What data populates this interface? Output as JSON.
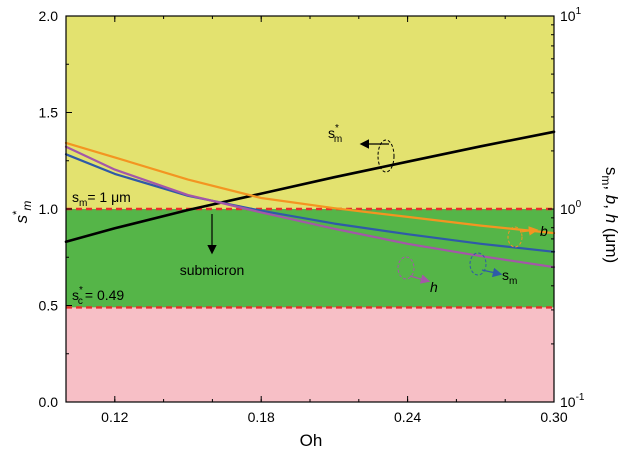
{
  "chart_data": {
    "type": "line",
    "xlabel": "Oh",
    "ylabel_left": "s*m",
    "ylabel_right": "sm, b, h (μm)",
    "xlim": [
      0.1,
      0.3
    ],
    "ylim_left": [
      0,
      2.0
    ],
    "ylim_right_log": [
      0.1,
      10
    ],
    "x_ticks": [
      0.12,
      0.18,
      0.24,
      0.3
    ],
    "x_tick_labels": [
      "0.12",
      "0.18",
      "0.24",
      "0.30"
    ],
    "y_left_ticks": [
      0.0,
      0.5,
      1.0,
      1.5,
      2.0
    ],
    "y_left_tick_labels": [
      "0.0",
      "0.5",
      "1.0",
      "1.5",
      "2.0"
    ],
    "y_right_ticks": [
      0.1,
      1,
      10
    ],
    "y_right_tick_labels": [
      "10",
      "10",
      "10"
    ],
    "y_right_tick_exponents": [
      "-1",
      "0",
      "1"
    ],
    "regions": [
      {
        "from": 1.0,
        "to": 2.0,
        "color": "#e3e26f"
      },
      {
        "from": 0.49,
        "to": 1.0,
        "color": "#55b548"
      },
      {
        "from": 0.0,
        "to": 0.49,
        "color": "#f7bfc6"
      }
    ],
    "reference_lines": [
      {
        "axis": "left",
        "value": 1.0,
        "color": "#e8302c"
      },
      {
        "axis": "left",
        "value": 0.49,
        "color": "#e8302c"
      }
    ],
    "series": [
      {
        "axis": "left",
        "color": "#000000",
        "x": [
          0.1,
          0.12,
          0.15,
          0.18,
          0.21,
          0.24,
          0.27,
          0.3
        ],
        "y": [
          0.83,
          0.9,
          0.995,
          1.08,
          1.165,
          1.245,
          1.325,
          1.4
        ]
      },
      {
        "axis": "right",
        "color": "#f39521",
        "x": [
          0.1,
          0.12,
          0.15,
          0.18,
          0.21,
          0.24,
          0.27,
          0.3
        ],
        "y": [
          2.2,
          1.85,
          1.42,
          1.14,
          1.01,
          0.91,
          0.82,
          0.75
        ]
      },
      {
        "axis": "right",
        "color": "#2f5aa8",
        "x": [
          0.1,
          0.12,
          0.15,
          0.18,
          0.21,
          0.24,
          0.27,
          0.3
        ],
        "y": [
          1.92,
          1.52,
          1.17,
          0.98,
          0.84,
          0.74,
          0.66,
          0.6
        ]
      },
      {
        "axis": "right",
        "color": "#a457a8",
        "x": [
          0.1,
          0.12,
          0.15,
          0.18,
          0.21,
          0.24,
          0.27,
          0.3
        ],
        "y": [
          2.1,
          1.6,
          1.18,
          0.96,
          0.79,
          0.66,
          0.57,
          0.5
        ]
      }
    ],
    "annotations": {
      "sm_star": "s",
      "sm_star_sup": "*",
      "sm_star_sub": "m",
      "sm_eq": "s",
      "sm_eq_sub": "m",
      "sm_eq_val": "= 1 μm",
      "submicron": "submicron",
      "sc": "s",
      "sc_sup": "*",
      "sc_sub": "c",
      "sc_val": "= 0.49",
      "b": "b",
      "h": "h",
      "sm_blue": "s",
      "sm_blue_sub": "m"
    }
  }
}
